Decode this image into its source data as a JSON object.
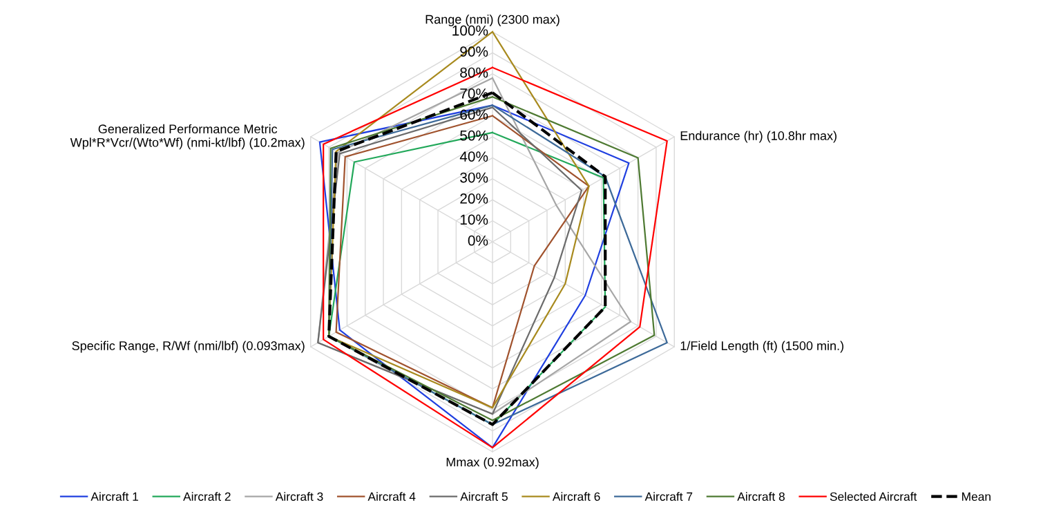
{
  "chart_data": {
    "type": "radar",
    "categories": [
      "Range (nmi) (2300 max)",
      "Endurance (hr) (10.8hr max)",
      "1/Field Length (ft) (1500 min.)",
      "Mmax (0.92max)",
      "Specific Range, R/Wf (nmi/lbf) (0.093max)",
      "Generalized Performance Metric\nWpl*R*Vcr/(Wto*Wf) (nmi-kt/lbf) (10.2max)"
    ],
    "ylim": [
      0,
      100
    ],
    "yticks": [
      {
        "value": 0,
        "label": "0%"
      },
      {
        "value": 10,
        "label": "10%"
      },
      {
        "value": 20,
        "label": "20%"
      },
      {
        "value": 30,
        "label": "30%"
      },
      {
        "value": 40,
        "label": "40%"
      },
      {
        "value": 50,
        "label": "50%"
      },
      {
        "value": 60,
        "label": "60%"
      },
      {
        "value": 70,
        "label": "70%"
      },
      {
        "value": 80,
        "label": "80%"
      },
      {
        "value": 90,
        "label": "90%"
      },
      {
        "value": 100,
        "label": "100%"
      }
    ],
    "grid": true,
    "legend": "bottom",
    "marker": "none",
    "line_style": "solid",
    "series": [
      {
        "name": "Aircraft 1",
        "color": "#1f3fe0",
        "values": [
          65,
          75,
          51,
          98,
          84,
          95
        ]
      },
      {
        "name": "Aircraft 2",
        "color": "#22a85a",
        "values": [
          52,
          61,
          62,
          87,
          90,
          76
        ]
      },
      {
        "name": "Aircraft 3",
        "color": "#a6a6a6",
        "values": [
          78,
          35,
          76,
          82,
          96,
          85
        ]
      },
      {
        "name": "Aircraft 4",
        "color": "#a0522d",
        "values": [
          60,
          53,
          23,
          79,
          86,
          81
        ]
      },
      {
        "name": "Aircraft 5",
        "color": "#6b6b6b",
        "values": [
          64,
          49,
          34,
          82,
          96,
          84
        ]
      },
      {
        "name": "Aircraft 6",
        "color": "#a88a1e",
        "values": [
          100,
          53,
          40,
          79,
          90,
          86
        ]
      },
      {
        "name": "Aircraft 7",
        "color": "#3d6a99",
        "values": [
          65,
          62,
          96,
          87,
          90,
          88
        ]
      },
      {
        "name": "Aircraft 8",
        "color": "#4e7a32",
        "values": [
          69,
          80,
          89,
          85,
          90,
          89
        ]
      },
      {
        "name": "Selected Aircraft",
        "color": "#ff0000",
        "values": [
          83,
          96,
          81,
          98,
          93,
          93
        ]
      },
      {
        "name": "Mean",
        "color": "#000000",
        "line_style": "dashed",
        "values": [
          71,
          62,
          62,
          87,
          90,
          86
        ]
      }
    ]
  }
}
